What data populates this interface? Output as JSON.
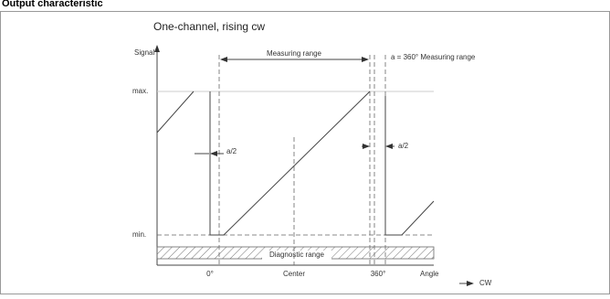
{
  "header": {
    "title": "Output characteristic"
  },
  "diagram": {
    "title": "One-channel, rising cw",
    "labels": {
      "signal": "Signal",
      "measuring_range": "Measuring range",
      "full_range": "a = 360° Measuring range",
      "max": "max.",
      "min": "min.",
      "half_left": "a/2",
      "half_right": "a/2",
      "diagnostic": "Diagnostic range",
      "zero": "0°",
      "center": "Center",
      "full": "360°",
      "angle": "Angle",
      "direction": "CW"
    }
  }
}
